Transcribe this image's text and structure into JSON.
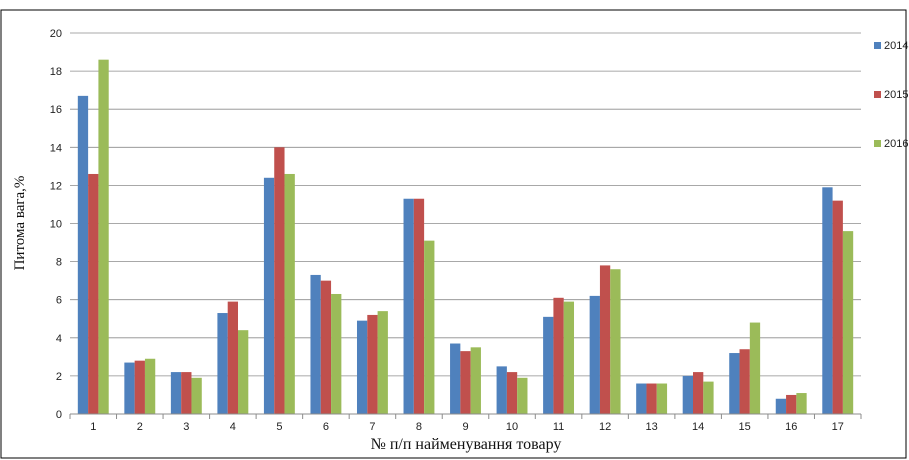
{
  "chart_data": {
    "type": "bar",
    "title": "",
    "xlabel": "№ п/п найменування товару",
    "ylabel": "Питома вага,%",
    "ylim": [
      0,
      20
    ],
    "yticks": [
      "0",
      "2",
      "4",
      "6",
      "8",
      "10",
      "12",
      "14",
      "16",
      "18",
      "20"
    ],
    "grid": true,
    "legend_position": "right",
    "categories": [
      "1",
      "2",
      "3",
      "4",
      "5",
      "6",
      "7",
      "8",
      "9",
      "10",
      "11",
      "12",
      "13",
      "14",
      "15",
      "16",
      "17"
    ],
    "series": [
      {
        "name": "2014",
        "color": "#4F81BD",
        "values": [
          16.7,
          2.7,
          2.2,
          5.3,
          12.4,
          7.3,
          4.9,
          11.3,
          3.7,
          2.5,
          5.1,
          6.2,
          1.6,
          2.0,
          3.2,
          0.8,
          11.9
        ]
      },
      {
        "name": "2015",
        "color": "#C0504D",
        "values": [
          12.6,
          2.8,
          2.2,
          5.9,
          14.0,
          7.0,
          5.2,
          11.3,
          3.3,
          2.2,
          6.1,
          7.8,
          1.6,
          2.2,
          3.4,
          1.0,
          11.2
        ]
      },
      {
        "name": "2016",
        "color": "#9BBB59",
        "values": [
          18.6,
          2.9,
          1.9,
          4.4,
          12.6,
          6.3,
          5.4,
          9.1,
          3.5,
          1.9,
          5.9,
          7.6,
          1.6,
          1.7,
          4.8,
          1.1,
          9.6
        ]
      }
    ]
  }
}
